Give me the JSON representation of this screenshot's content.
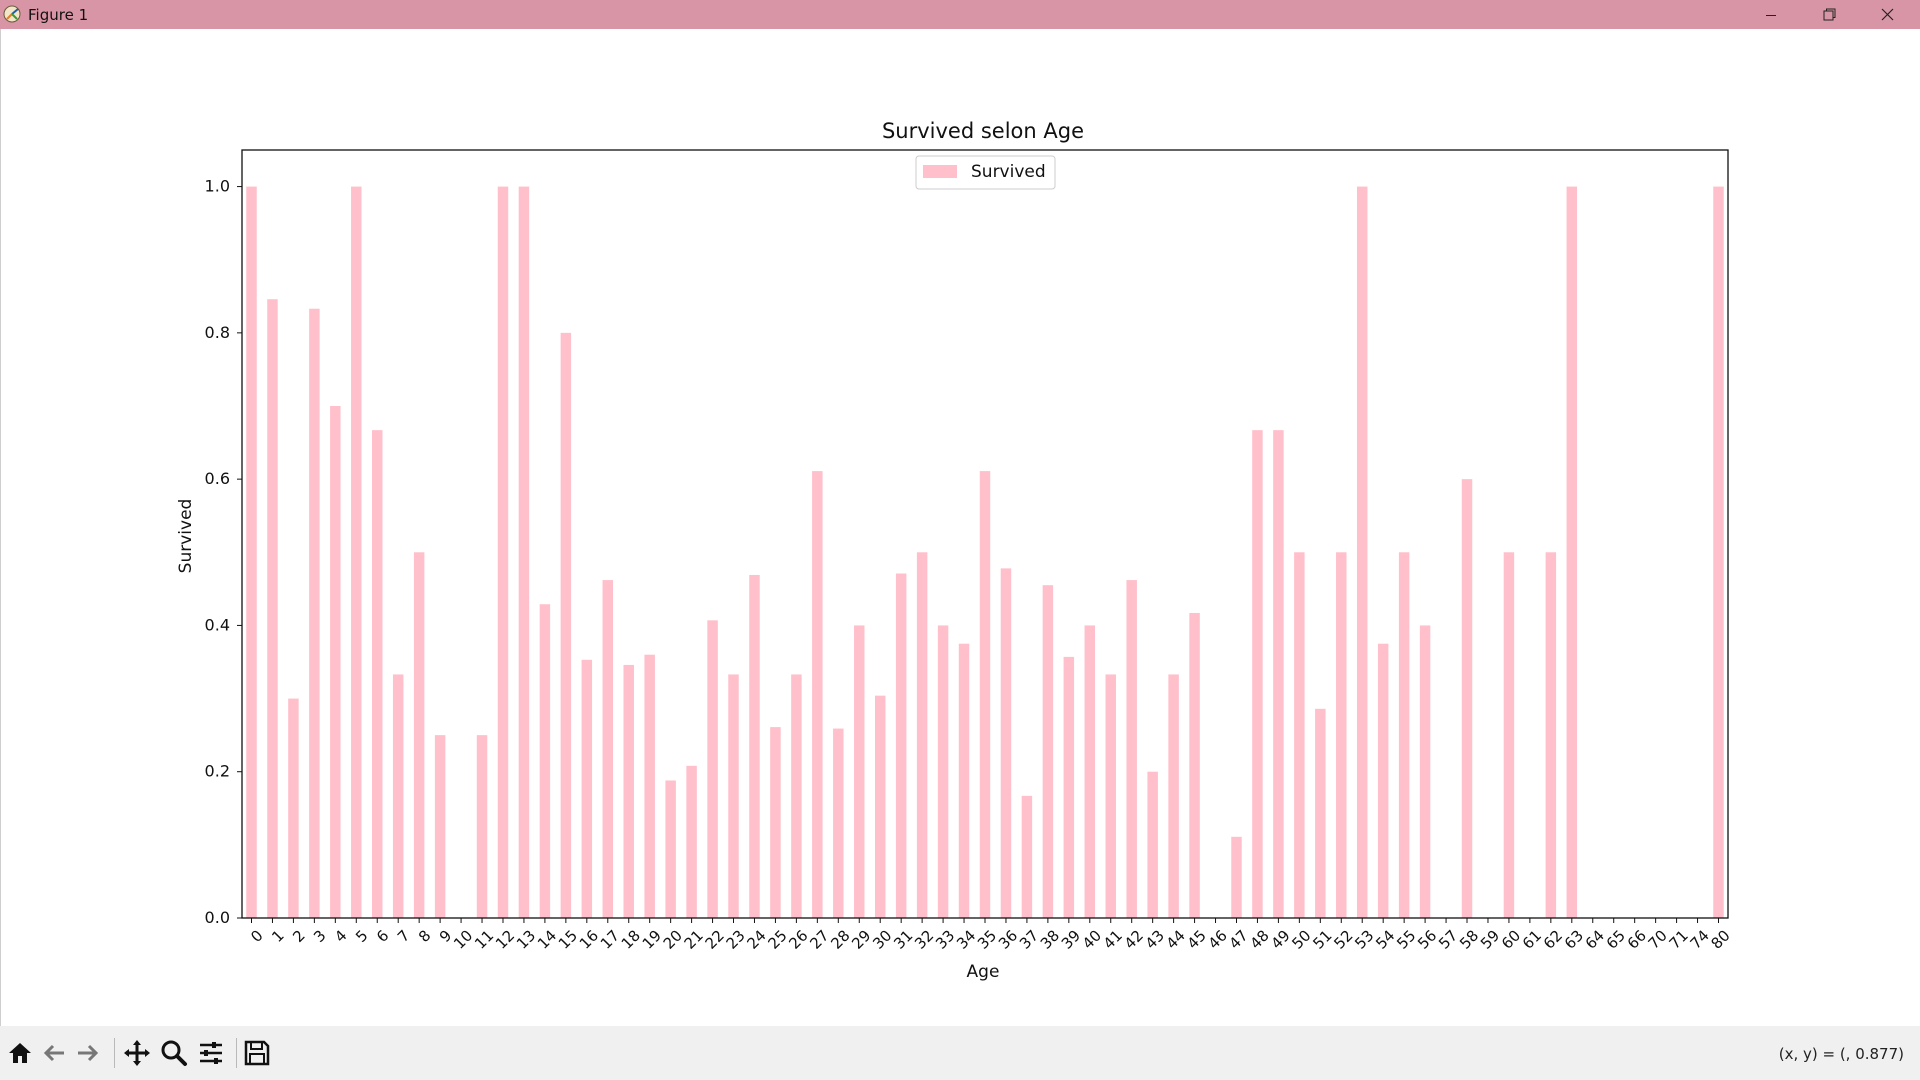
{
  "window": {
    "title": "Figure 1",
    "controls": [
      "minimize-icon",
      "restore-icon",
      "close-icon"
    ]
  },
  "toolbar": {
    "buttons": [
      "home-icon",
      "back-arrow-icon",
      "forward-arrow-icon",
      "pan-icon",
      "zoom-icon",
      "configure-subplots-icon",
      "save-icon"
    ],
    "coords": "(x, y) = (, 0.877)"
  },
  "colors": {
    "titlebar": "#d895a6",
    "bar": "#ffc0cb"
  },
  "chart_data": {
    "type": "bar",
    "title": "Survived selon Age",
    "xlabel": "Age",
    "ylabel": "Survived",
    "ylim": [
      0.0,
      1.05
    ],
    "yticks": [
      "0.0",
      "0.2",
      "0.4",
      "0.6",
      "0.8",
      "1.0"
    ],
    "grid": false,
    "legend": "top-center",
    "categories": [
      "0",
      "1",
      "2",
      "3",
      "4",
      "5",
      "6",
      "7",
      "8",
      "9",
      "10",
      "11",
      "12",
      "13",
      "14",
      "15",
      "16",
      "17",
      "18",
      "19",
      "20",
      "21",
      "22",
      "23",
      "24",
      "25",
      "26",
      "27",
      "28",
      "29",
      "30",
      "31",
      "32",
      "33",
      "34",
      "35",
      "36",
      "37",
      "38",
      "39",
      "40",
      "41",
      "42",
      "43",
      "44",
      "45",
      "46",
      "47",
      "48",
      "49",
      "50",
      "51",
      "52",
      "53",
      "54",
      "55",
      "56",
      "57",
      "58",
      "59",
      "60",
      "61",
      "62",
      "63",
      "64",
      "65",
      "66",
      "70",
      "71",
      "74",
      "80"
    ],
    "series": [
      {
        "name": "Survived",
        "values": [
          1.0,
          0.846,
          0.3,
          0.833,
          0.7,
          1.0,
          0.667,
          0.333,
          0.5,
          0.25,
          0.0,
          0.25,
          1.0,
          1.0,
          0.429,
          0.8,
          0.353,
          0.462,
          0.346,
          0.36,
          0.188,
          0.208,
          0.407,
          0.333,
          0.469,
          0.261,
          0.333,
          0.611,
          0.259,
          0.4,
          0.304,
          0.471,
          0.5,
          0.4,
          0.375,
          0.611,
          0.478,
          0.167,
          0.455,
          0.357,
          0.4,
          0.333,
          0.462,
          0.2,
          0.333,
          0.417,
          0.0,
          0.111,
          0.667,
          0.667,
          0.5,
          0.286,
          0.5,
          1.0,
          0.375,
          0.5,
          0.4,
          0.0,
          0.6,
          0.0,
          0.5,
          0.0,
          0.5,
          1.0,
          0.0,
          0.0,
          0.0,
          0.0,
          0.0,
          0.0,
          1.0
        ]
      }
    ]
  }
}
